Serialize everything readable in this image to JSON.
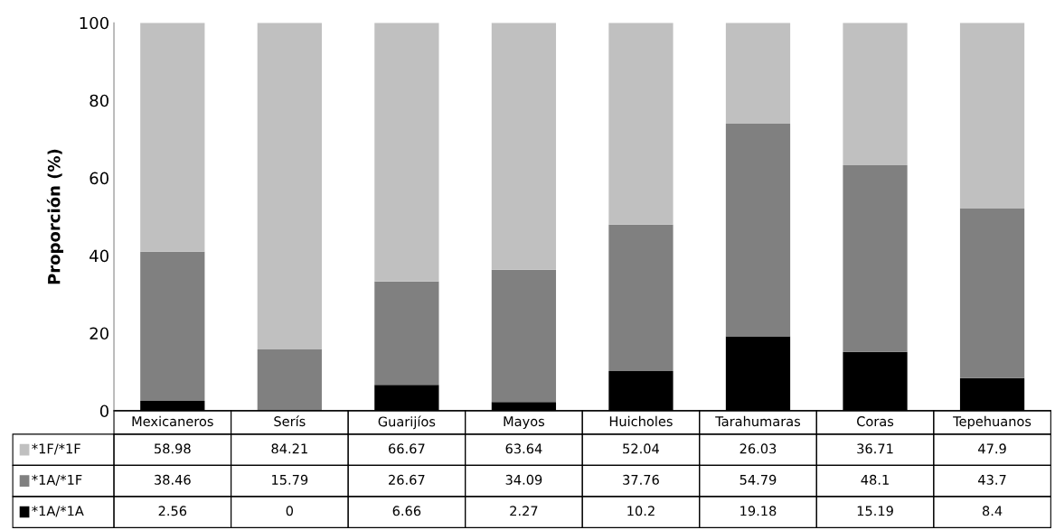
{
  "chart_data": {
    "type": "bar",
    "stacked": true,
    "ylabel": "Proporción (%)",
    "categories": [
      "Mexicaneros",
      "Serís",
      "Guarijíos",
      "Mayos",
      "Huicholes",
      "Tarahumaras",
      "Coras",
      "Tepehuanos"
    ],
    "series": [
      {
        "name": "*1A/*1A",
        "color": "#000000",
        "values": [
          2.56,
          0,
          6.66,
          2.27,
          10.2,
          19.18,
          15.19,
          8.4
        ]
      },
      {
        "name": "*1A/*1F",
        "color": "#808080",
        "values": [
          38.46,
          15.79,
          26.67,
          34.09,
          37.76,
          54.79,
          48.1,
          43.7
        ]
      },
      {
        "name": "*1F/*1F",
        "color": "#c0c0c0",
        "values": [
          58.98,
          84.21,
          66.67,
          63.64,
          52.04,
          26.03,
          36.71,
          47.9
        ]
      }
    ],
    "ylim": [
      0,
      100
    ],
    "yticks": [
      0,
      20,
      40,
      60,
      80,
      100
    ],
    "grid": false,
    "legend": "bottom left",
    "data_labels": true
  }
}
